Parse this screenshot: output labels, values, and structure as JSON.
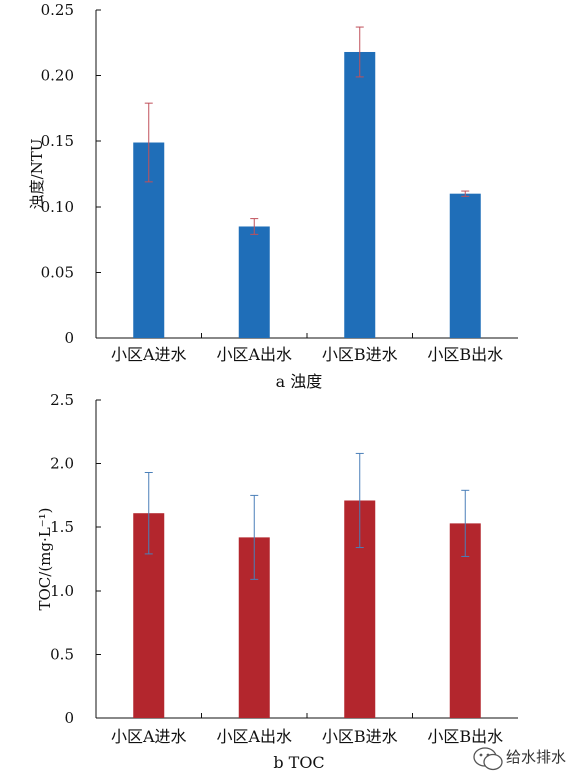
{
  "chart_data": [
    {
      "type": "bar",
      "caption": "a 浊度",
      "ylabel": "浊度/NTU",
      "categories": [
        "小区A进水",
        "小区A出水",
        "小区B进水",
        "小区B出水"
      ],
      "values": [
        0.149,
        0.085,
        0.218,
        0.11
      ],
      "errors": [
        0.03,
        0.006,
        0.019,
        0.002
      ],
      "ylim": [
        0,
        0.25
      ],
      "yticks": [
        0,
        0.05,
        0.1,
        0.15,
        0.2,
        0.25
      ],
      "ytick_labels": [
        "0",
        "0.05",
        "0.10",
        "0.15",
        "0.20",
        "0.25"
      ],
      "bar_color": "#1f6eb8",
      "error_color": "#c0505a",
      "grid": false
    },
    {
      "type": "bar",
      "caption": "b TOC",
      "ylabel": "TOC/(mg·L⁻¹)",
      "categories": [
        "小区A进水",
        "小区A出水",
        "小区B进水",
        "小区B出水"
      ],
      "values": [
        1.61,
        1.42,
        1.71,
        1.53
      ],
      "errors": [
        0.32,
        0.33,
        0.37,
        0.26
      ],
      "ylim": [
        0,
        2.5
      ],
      "yticks": [
        0,
        0.5,
        1.0,
        1.5,
        2.0,
        2.5
      ],
      "ytick_labels": [
        "0",
        "0.5",
        "1.0",
        "1.5",
        "2.0",
        "2.5"
      ],
      "bar_color": "#b3262d",
      "error_color": "#4a7fb8",
      "grid": false
    }
  ],
  "watermark": {
    "text": "给水排水",
    "icon": "wechat-bubble-icon"
  }
}
